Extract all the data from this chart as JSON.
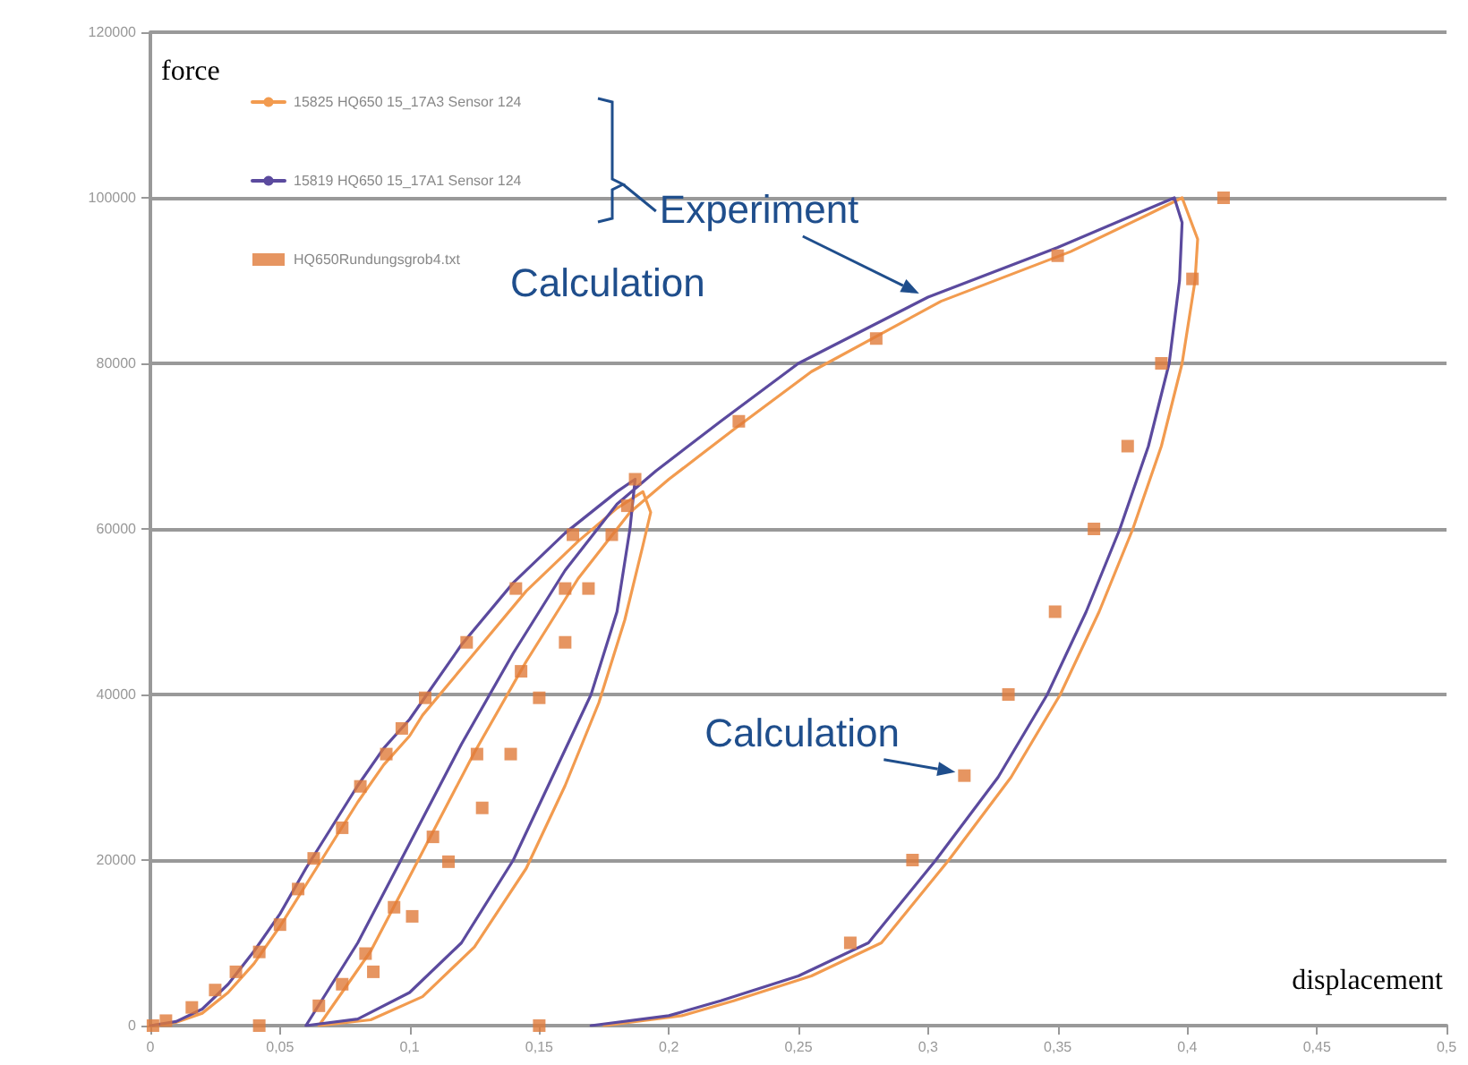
{
  "chart_data": {
    "type": "line",
    "xlabel": "displacement",
    "ylabel": "force",
    "xlim": [
      0,
      0.5
    ],
    "xticks": [
      0,
      {
        "value": 0.05,
        "label": "0,05"
      },
      {
        "value": 0.1,
        "label": "0,1"
      },
      {
        "value": 0.15,
        "label": "0,15"
      },
      {
        "value": 0.2,
        "label": "0,2"
      },
      {
        "value": 0.25,
        "label": "0,25"
      },
      {
        "value": 0.3,
        "label": "0,3"
      },
      {
        "value": 0.35,
        "label": "0,35"
      },
      {
        "value": 0.4,
        "label": "0,4"
      },
      {
        "value": 0.45,
        "label": "0,45"
      },
      {
        "value": 0.5,
        "label": "0,5"
      }
    ],
    "ylim": [
      0,
      120000
    ],
    "yticks": [
      0,
      20000,
      40000,
      60000,
      80000,
      100000,
      120000
    ],
    "grid": "y",
    "legend": "top left",
    "annotations": [
      {
        "text": "Experiment",
        "x": 0.3,
        "y": 88000
      },
      "Calculation",
      {
        "text": "Calculation",
        "x": 0.314,
        "y": 30200
      }
    ],
    "series": [
      {
        "name": "15825 HQ650 15_17A3 Sensor 124",
        "color": "#f29b4f",
        "marker": "none",
        "x": [
          0,
          0.01,
          0.02,
          0.03,
          0.04,
          0.05,
          0.06,
          0.07,
          0.08,
          0.09,
          0.1,
          0.105,
          0.125,
          0.145,
          0.165,
          0.18,
          0.19,
          0.193,
          0.19,
          0.183,
          0.173,
          0.16,
          0.145,
          0.125,
          0.105,
          0.085,
          0.065,
          0.085,
          0.105,
          0.125,
          0.145,
          0.165,
          0.185,
          0.2,
          0.225,
          0.255,
          0.305,
          0.355,
          0.385,
          0.398,
          0.404,
          0.403,
          0.398,
          0.39,
          0.379,
          0.366,
          0.351,
          0.332,
          0.308,
          0.282,
          0.255,
          0.225,
          0.205,
          0.175
        ],
        "values": [
          0,
          400,
          1500,
          4000,
          7500,
          12000,
          17000,
          22000,
          27000,
          31500,
          35000,
          37500,
          45000,
          52500,
          58500,
          62500,
          64500,
          62000,
          58000,
          49000,
          39000,
          29000,
          19000,
          9500,
          3500,
          700,
          0,
          9000,
          21000,
          33000,
          44000,
          54000,
          62000,
          66000,
          72000,
          79000,
          87500,
          93500,
          98000,
          100000,
          95000,
          90000,
          80000,
          70000,
          60000,
          50000,
          40000,
          30000,
          20000,
          10000,
          6000,
          3000,
          1200,
          0
        ]
      },
      {
        "name": "15819 HQ650 15_17A1 Sensor 124",
        "color": "#5b4a9e",
        "marker": "none",
        "x": [
          0,
          0.01,
          0.02,
          0.03,
          0.04,
          0.05,
          0.06,
          0.07,
          0.08,
          0.09,
          0.1,
          0.12,
          0.14,
          0.16,
          0.18,
          0.187,
          0.185,
          0.18,
          0.17,
          0.155,
          0.14,
          0.12,
          0.1,
          0.08,
          0.06,
          0.08,
          0.1,
          0.12,
          0.14,
          0.16,
          0.18,
          0.195,
          0.22,
          0.25,
          0.3,
          0.35,
          0.38,
          0.395,
          0.398,
          0.397,
          0.393,
          0.385,
          0.374,
          0.361,
          0.346,
          0.327,
          0.303,
          0.277,
          0.25,
          0.22,
          0.2,
          0.17
        ],
        "values": [
          0,
          500,
          2000,
          5000,
          9000,
          13500,
          19000,
          24000,
          29000,
          33500,
          37000,
          46000,
          53500,
          59500,
          64500,
          66000,
          60000,
          50000,
          40000,
          30000,
          20000,
          10000,
          4000,
          800,
          0,
          10000,
          22000,
          34000,
          45000,
          55000,
          63000,
          67000,
          73000,
          80000,
          88000,
          94000,
          98000,
          100000,
          97000,
          90000,
          80000,
          70000,
          60000,
          50000,
          40000,
          30000,
          20000,
          10000,
          6000,
          3000,
          1200,
          0
        ]
      },
      {
        "name": "HQ650Rundungsgrob4.txt",
        "type": "scatter",
        "color": "#e07b39",
        "marker": "square",
        "x": [
          0.001,
          0.006,
          0.016,
          0.025,
          0.033,
          0.042,
          0.05,
          0.057,
          0.063,
          0.074,
          0.081,
          0.091,
          0.097,
          0.042,
          0.15,
          0.065,
          0.074,
          0.083,
          0.086,
          0.094,
          0.101,
          0.109,
          0.115,
          0.128,
          0.126,
          0.139,
          0.106,
          0.15,
          0.143,
          0.122,
          0.16,
          0.141,
          0.16,
          0.169,
          0.163,
          0.178,
          0.184,
          0.187,
          0.227,
          0.28,
          0.35,
          0.414,
          0.402,
          0.39,
          0.377,
          0.364,
          0.349,
          0.331,
          0.314,
          0.294,
          0.27
        ],
        "values": [
          0,
          600,
          2200,
          4300,
          6500,
          8900,
          12200,
          16500,
          20200,
          23900,
          28900,
          32800,
          35900,
          0,
          0,
          2400,
          5000,
          8700,
          6500,
          14300,
          13200,
          22800,
          19800,
          26300,
          32800,
          32800,
          39600,
          39600,
          42800,
          46300,
          46300,
          52800,
          52800,
          52800,
          59300,
          59300,
          62800,
          66000,
          73000,
          83000,
          93000,
          100000,
          90200,
          80000,
          70000,
          60000,
          50000,
          40000,
          30200,
          20000,
          10000
        ]
      }
    ]
  }
}
